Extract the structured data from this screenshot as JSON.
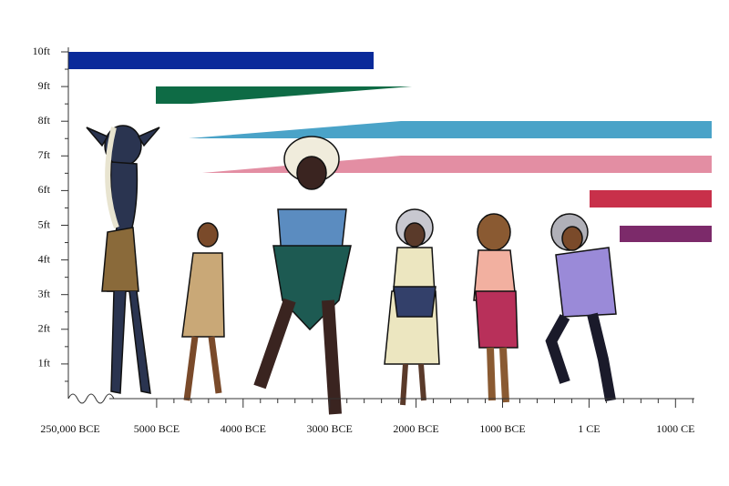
{
  "chart_data": {
    "type": "timeline",
    "categories": [
      "250,000 BCE",
      "5000 BCE",
      "4000 BCE",
      "3000 BCE",
      "2000 BCE",
      "1000 BCE",
      "1 CE",
      "1000 CE"
    ],
    "ylim": [
      0,
      10
    ],
    "yticks": [
      {
        "value": 1,
        "label": "1ft"
      },
      {
        "value": 2,
        "label": "2ft"
      },
      {
        "value": 3,
        "label": "3ft"
      },
      {
        "value": 4,
        "label": "4ft"
      },
      {
        "value": 5,
        "label": "5ft"
      },
      {
        "value": 6,
        "label": "6ft"
      },
      {
        "value": 7,
        "label": "7ft"
      },
      {
        "value": 8,
        "label": "8ft"
      },
      {
        "value": 9,
        "label": "9ft"
      },
      {
        "value": 10,
        "label": "10ft"
      }
    ]
  }
}
